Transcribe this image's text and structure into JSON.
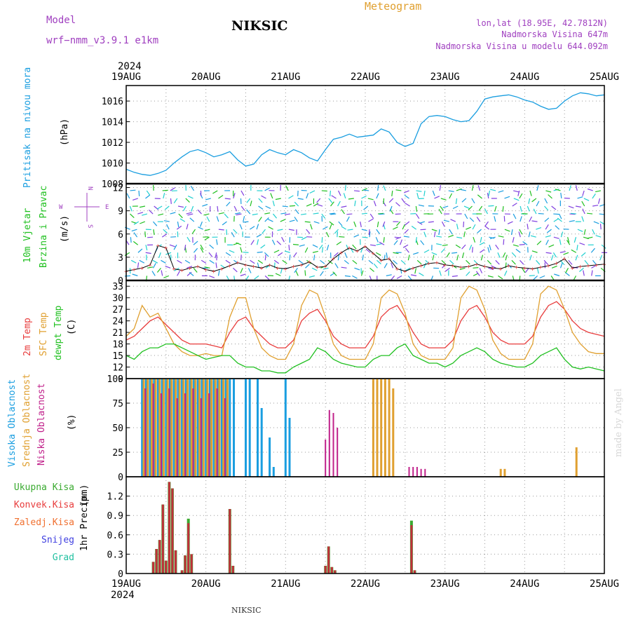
{
  "header": {
    "model_label": "Model",
    "model_name": "wrf−nmm_v3.9.1  e1km",
    "station": "NIKSIC",
    "meteogram": "Meteogram",
    "lonlat": "lon,lat (18.95E, 42.7812N)",
    "elevation": "Nadmorska Visina 647m",
    "model_elevation": "Nadmorska Visina u modelu 644.092m",
    "footer_station": "NIKSIC",
    "credit": "made by Angel"
  },
  "colors": {
    "pressure": "#1a9ee0",
    "temp2m": "#e83c3c",
    "sfc_temp": "#e0a030",
    "dewpoint": "#20c020",
    "high_cloud": "#1a9ee0",
    "mid_cloud": "#e0a030",
    "low_cloud": "#c0208a",
    "total_precip": "#3aaa30",
    "convective": "#c0303a",
    "wind_label": "#20c020",
    "header_purple": "#a040c0",
    "header_orange": "#e0a030"
  },
  "chart_data": [
    {
      "type": "line",
      "id": "pressure",
      "ylabel_colored": "Pritisak na nivou mora",
      "ylabel_unit": "(hPa)",
      "yticks": [
        1008,
        1010,
        1012,
        1014,
        1016
      ],
      "ylim": [
        1008,
        1017.5
      ],
      "x_axis_top_year": "2024",
      "x_axis_bottom_year": "2024",
      "xtick_labels": [
        "19AUG",
        "20AUG",
        "21AUG",
        "22AUG",
        "23AUG",
        "24AUG",
        "25AUG"
      ],
      "xlim_days": [
        0,
        6
      ],
      "grid": true,
      "series": [
        {
          "x": [
            0,
            0.1,
            0.2,
            0.3,
            0.4,
            0.5,
            0.6,
            0.7,
            0.8,
            0.9,
            1.0,
            1.1,
            1.2,
            1.3,
            1.4,
            1.5,
            1.6,
            1.7,
            1.8,
            1.9,
            2.0,
            2.1,
            2.2,
            2.3,
            2.4,
            2.5,
            2.6,
            2.7,
            2.8,
            2.9,
            3.0,
            3.1,
            3.2,
            3.3,
            3.4,
            3.5,
            3.6,
            3.7,
            3.8,
            3.9,
            4.0,
            4.1,
            4.2,
            4.3,
            4.4,
            4.5,
            4.6,
            4.7,
            4.8,
            4.9,
            5.0,
            5.1,
            5.2,
            5.3,
            5.4,
            5.5,
            5.6,
            5.7,
            5.8,
            5.9,
            6.0
          ],
          "y": [
            1009.4,
            1009.1,
            1008.9,
            1008.8,
            1009.0,
            1009.3,
            1010.0,
            1010.6,
            1011.1,
            1011.3,
            1011.0,
            1010.6,
            1010.8,
            1011.1,
            1010.3,
            1009.7,
            1009.9,
            1010.8,
            1011.3,
            1011.0,
            1010.8,
            1011.3,
            1011.0,
            1010.5,
            1010.2,
            1011.3,
            1012.3,
            1012.5,
            1012.8,
            1012.5,
            1012.6,
            1012.7,
            1013.3,
            1013.0,
            1012.0,
            1011.6,
            1011.9,
            1013.8,
            1014.5,
            1014.6,
            1014.5,
            1014.2,
            1014.0,
            1014.1,
            1015.0,
            1016.2,
            1016.4,
            1016.5,
            1016.6,
            1016.4,
            1016.1,
            1015.9,
            1015.5,
            1015.2,
            1015.3,
            1016.0,
            1016.5,
            1016.8,
            1016.7,
            1016.5,
            1016.6
          ]
        }
      ]
    },
    {
      "type": "line",
      "id": "wind",
      "ylabel_colored_1": "10m Vjetar",
      "ylabel_colored_2": "Brzina i Pravac",
      "ylabel_unit": "(m/s)",
      "compass": "N",
      "compass_w": "W",
      "compass_e": "E",
      "compass_s": "S",
      "yticks": [
        0,
        3,
        6,
        9,
        12
      ],
      "ylim": [
        0,
        12.5
      ],
      "grid": true,
      "series": [
        {
          "name": "speed",
          "x": [
            0,
            0.1,
            0.2,
            0.3,
            0.4,
            0.5,
            0.6,
            0.7,
            0.8,
            0.9,
            1.0,
            1.1,
            1.2,
            1.3,
            1.4,
            1.5,
            1.6,
            1.7,
            1.8,
            1.9,
            2.0,
            2.1,
            2.2,
            2.3,
            2.4,
            2.5,
            2.6,
            2.7,
            2.8,
            2.9,
            3.0,
            3.1,
            3.2,
            3.3,
            3.4,
            3.5,
            3.6,
            3.7,
            3.8,
            3.9,
            4.0,
            4.1,
            4.2,
            4.3,
            4.4,
            4.5,
            4.6,
            4.7,
            4.8,
            4.9,
            5.0,
            5.1,
            5.2,
            5.3,
            5.4,
            5.5,
            5.6,
            5.7,
            5.8,
            5.9,
            6.0
          ],
          "y": [
            1.2,
            1.4,
            1.6,
            2.0,
            4.5,
            4.2,
            1.5,
            1.3,
            1.6,
            1.8,
            1.4,
            1.2,
            1.5,
            1.9,
            2.3,
            2.0,
            1.8,
            1.6,
            2.0,
            1.6,
            1.5,
            1.8,
            2.0,
            2.4,
            1.7,
            1.8,
            2.8,
            3.6,
            4.2,
            3.8,
            4.4,
            3.5,
            2.6,
            2.8,
            1.5,
            1.2,
            1.6,
            1.9,
            2.2,
            2.3,
            2.0,
            1.9,
            1.7,
            1.8,
            2.1,
            1.8,
            1.6,
            1.5,
            1.9,
            1.7,
            1.6,
            1.5,
            1.7,
            1.9,
            2.2,
            2.8,
            1.6,
            1.8,
            1.9,
            2.0,
            2.1
          ]
        }
      ]
    },
    {
      "type": "line",
      "id": "temperature",
      "ylabel_1": "2m Temp",
      "ylabel_2": "SFC Temp",
      "ylabel_3": "dewpt Temp",
      "ylabel_unit": "(C)",
      "yticks": [
        9,
        12,
        15,
        18,
        21,
        24,
        27,
        30,
        33
      ],
      "ylim": [
        9,
        34.5
      ],
      "grid": true,
      "series": [
        {
          "name": "2m Temp",
          "x": [
            0,
            0.1,
            0.2,
            0.3,
            0.4,
            0.5,
            0.6,
            0.7,
            0.8,
            0.9,
            1.0,
            1.1,
            1.2,
            1.3,
            1.4,
            1.5,
            1.6,
            1.7,
            1.8,
            1.9,
            2.0,
            2.1,
            2.2,
            2.3,
            2.4,
            2.5,
            2.6,
            2.7,
            2.8,
            2.9,
            3.0,
            3.1,
            3.2,
            3.3,
            3.4,
            3.5,
            3.6,
            3.7,
            3.8,
            3.9,
            4.0,
            4.1,
            4.2,
            4.3,
            4.4,
            4.5,
            4.6,
            4.7,
            4.8,
            4.9,
            5.0,
            5.1,
            5.2,
            5.3,
            5.4,
            5.5,
            5.6,
            5.7,
            5.8,
            5.9,
            6.0
          ],
          "y": [
            19,
            20,
            22,
            24,
            25,
            23,
            21,
            19,
            18,
            18,
            18,
            17.5,
            17,
            21,
            24,
            25,
            22,
            20,
            18,
            17,
            17,
            19,
            24,
            26,
            27,
            24,
            20,
            18,
            17,
            17,
            17,
            20,
            25,
            27,
            28,
            25,
            21,
            18,
            17,
            17,
            17,
            19,
            24,
            27,
            28,
            25,
            21,
            19,
            18,
            18,
            18,
            20,
            25,
            28,
            29,
            27,
            24,
            22,
            21,
            20.5,
            20
          ]
        },
        {
          "name": "SFC Temp",
          "x": [
            0,
            0.1,
            0.2,
            0.3,
            0.4,
            0.5,
            0.6,
            0.7,
            0.8,
            0.9,
            1.0,
            1.1,
            1.2,
            1.3,
            1.4,
            1.5,
            1.6,
            1.7,
            1.8,
            1.9,
            2.0,
            2.1,
            2.2,
            2.3,
            2.4,
            2.5,
            2.6,
            2.7,
            2.8,
            2.9,
            3.0,
            3.1,
            3.2,
            3.3,
            3.4,
            3.5,
            3.6,
            3.7,
            3.8,
            3.9,
            4.0,
            4.1,
            4.2,
            4.3,
            4.4,
            4.5,
            4.6,
            4.7,
            4.8,
            4.9,
            5.0,
            5.1,
            5.2,
            5.3,
            5.4,
            5.5,
            5.6,
            5.7,
            5.8,
            5.9,
            6.0
          ],
          "y": [
            20,
            22,
            28,
            25,
            26,
            22,
            18,
            16,
            15,
            15,
            15.5,
            15,
            15,
            25,
            30,
            30,
            22,
            17,
            15,
            14,
            14,
            18,
            28,
            32,
            31,
            25,
            18,
            15,
            14,
            14,
            14,
            18,
            30,
            32,
            31,
            26,
            18,
            15,
            14,
            14,
            14,
            17,
            30,
            33,
            32,
            27,
            19,
            15.5,
            14,
            14,
            14,
            18,
            31,
            33,
            32,
            27,
            21,
            18,
            16,
            15.5,
            15.5
          ]
        },
        {
          "name": "dewpt Temp",
          "x": [
            0,
            0.1,
            0.2,
            0.3,
            0.4,
            0.5,
            0.6,
            0.7,
            0.8,
            0.9,
            1.0,
            1.1,
            1.2,
            1.3,
            1.4,
            1.5,
            1.6,
            1.7,
            1.8,
            1.9,
            2.0,
            2.1,
            2.2,
            2.3,
            2.4,
            2.5,
            2.6,
            2.7,
            2.8,
            2.9,
            3.0,
            3.1,
            3.2,
            3.3,
            3.4,
            3.5,
            3.6,
            3.7,
            3.8,
            3.9,
            4.0,
            4.1,
            4.2,
            4.3,
            4.4,
            4.5,
            4.6,
            4.7,
            4.8,
            4.9,
            5.0,
            5.1,
            5.2,
            5.3,
            5.4,
            5.5,
            5.6,
            5.7,
            5.8,
            5.9,
            6.0
          ],
          "y": [
            15,
            14,
            16,
            17,
            17,
            18,
            18,
            17,
            16,
            15,
            14,
            14.5,
            15,
            15,
            13,
            12,
            12,
            11,
            11,
            10.5,
            10.5,
            12,
            13,
            14,
            17,
            16,
            14,
            13,
            12.5,
            12,
            12,
            14,
            15,
            15,
            17,
            18,
            15,
            14,
            13,
            13,
            12,
            13,
            15,
            16,
            17,
            16,
            14,
            13,
            12.5,
            12,
            12,
            13,
            15,
            16,
            17,
            14,
            12,
            11.5,
            12,
            11.5,
            11
          ]
        }
      ]
    },
    {
      "type": "bar",
      "id": "cloud",
      "ylabel_1": "Visoka Oblacnost",
      "ylabel_2": "Srednja Oblacnost",
      "ylabel_3": "Niska Oblacnost",
      "ylabel_unit": "(%)",
      "yticks": [
        0,
        25,
        50,
        75,
        100
      ],
      "ylim": [
        0,
        100
      ],
      "grid": true,
      "series": [
        {
          "name": "Visoka Oblacnost",
          "x": [
            0.2,
            0.25,
            0.3,
            0.35,
            0.4,
            0.45,
            0.5,
            0.55,
            0.6,
            0.65,
            0.7,
            0.75,
            0.8,
            0.85,
            0.9,
            0.95,
            1.0,
            1.05,
            1.1,
            1.15,
            1.2,
            1.25,
            1.3,
            1.35,
            1.5,
            1.55,
            1.65,
            1.7,
            1.8,
            1.85,
            2.0,
            2.05
          ],
          "y": [
            100,
            100,
            100,
            100,
            100,
            100,
            100,
            100,
            100,
            100,
            100,
            100,
            100,
            100,
            100,
            100,
            100,
            100,
            100,
            100,
            100,
            100,
            100,
            100,
            100,
            100,
            100,
            70,
            40,
            10,
            100,
            60
          ]
        },
        {
          "name": "Srednja Oblacnost",
          "x": [
            0.22,
            0.27,
            0.32,
            0.37,
            0.42,
            0.47,
            0.52,
            0.57,
            0.62,
            0.67,
            0.72,
            0.77,
            0.82,
            0.87,
            0.92,
            0.97,
            1.02,
            1.07,
            1.12,
            1.17,
            1.22,
            1.27,
            3.1,
            3.15,
            3.2,
            3.25,
            3.3,
            3.35,
            4.7,
            4.75,
            5.65
          ],
          "y": [
            100,
            100,
            100,
            100,
            100,
            100,
            100,
            100,
            100,
            100,
            100,
            100,
            100,
            100,
            100,
            100,
            100,
            100,
            100,
            100,
            100,
            100,
            100,
            100,
            100,
            100,
            100,
            90,
            8,
            8,
            30
          ]
        },
        {
          "name": "Niska Oblacnost",
          "x": [
            0.24,
            0.34,
            0.44,
            0.54,
            0.64,
            0.74,
            0.84,
            0.94,
            1.04,
            1.14,
            1.24,
            2.5,
            2.55,
            2.6,
            2.65,
            3.55,
            3.6,
            3.65,
            3.7,
            3.75
          ],
          "y": [
            90,
            95,
            85,
            90,
            80,
            85,
            90,
            80,
            85,
            90,
            80,
            38,
            68,
            65,
            50,
            10,
            10,
            10,
            8,
            8
          ]
        }
      ]
    },
    {
      "type": "bar",
      "id": "precip",
      "ylabel_colored": "1hr Precip",
      "ylabel_unit": "(mm)",
      "legend": [
        "Ukupna Kisa",
        "Konvek.Kisa",
        "Zaledj.Kisa",
        "Snijeg",
        "Grad"
      ],
      "yticks": [
        0,
        0.3,
        0.6,
        0.9,
        1.2
      ],
      "ylim": [
        0,
        1.5
      ],
      "grid": true,
      "series": [
        {
          "name": "Ukupna Kisa",
          "x": [
            0.34,
            0.38,
            0.42,
            0.46,
            0.5,
            0.54,
            0.58,
            0.62,
            0.7,
            0.74,
            0.78,
            0.82,
            1.3,
            1.34,
            2.5,
            2.54,
            2.58,
            2.62,
            3.58,
            3.62
          ],
          "y": [
            0.18,
            0.38,
            0.52,
            1.07,
            0.2,
            1.42,
            1.32,
            0.36,
            0.05,
            0.28,
            0.85,
            0.3,
            1.0,
            0.12,
            0.12,
            0.42,
            0.1,
            0.05,
            0.82,
            0.05
          ]
        },
        {
          "name": "Konvek.Kisa",
          "x": [
            0.34,
            0.38,
            0.42,
            0.46,
            0.5,
            0.54,
            0.58,
            0.62,
            0.7,
            0.74,
            0.78,
            0.82,
            1.3,
            1.34,
            2.5,
            2.54,
            2.58,
            2.62,
            3.58,
            3.62
          ],
          "y": [
            0.18,
            0.38,
            0.52,
            1.07,
            0.2,
            1.42,
            1.32,
            0.36,
            0.05,
            0.28,
            0.78,
            0.3,
            1.0,
            0.12,
            0.12,
            0.42,
            0.1,
            0.05,
            0.75,
            0.05
          ]
        }
      ]
    }
  ]
}
